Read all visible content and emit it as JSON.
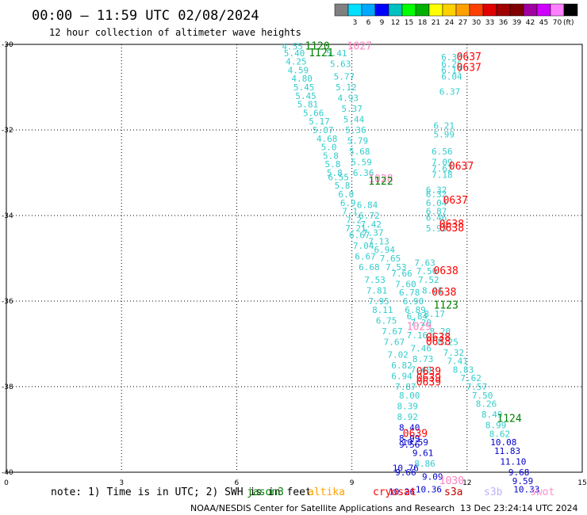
{
  "header": {
    "title": "00:00 – 11:59 UTC 02/08/2024",
    "subtitle": "12 hour collection of altimeter wave heights"
  },
  "legend": {
    "unit": "(ft)",
    "bins": [
      {
        "label": "",
        "color": "#808080"
      },
      {
        "label": "3",
        "color": "#00e0ff"
      },
      {
        "label": "6",
        "color": "#00a8ff"
      },
      {
        "label": "9",
        "color": "#0000ff"
      },
      {
        "label": "12",
        "color": "#00c0c0"
      },
      {
        "label": "15",
        "color": "#00ff00"
      },
      {
        "label": "18",
        "color": "#00b000"
      },
      {
        "label": "21",
        "color": "#ffff00"
      },
      {
        "label": "24",
        "color": "#ffd000"
      },
      {
        "label": "27",
        "color": "#ffa000"
      },
      {
        "label": "30",
        "color": "#ff4000"
      },
      {
        "label": "33",
        "color": "#e00000"
      },
      {
        "label": "36",
        "color": "#a00000"
      },
      {
        "label": "39",
        "color": "#800000"
      },
      {
        "label": "42",
        "color": "#a000a0"
      },
      {
        "label": "45",
        "color": "#d000ff"
      },
      {
        "label": "70",
        "color": "#ff80ff"
      },
      {
        "label": "",
        "color": "#000000"
      }
    ]
  },
  "footer": {
    "note": "note: 1) Time is in UTC; 2) SWH is in feet",
    "satellites": [
      {
        "name": "jason3",
        "color": "#008000"
      },
      {
        "name": "altika",
        "color": "#ffa000"
      },
      {
        "name": "cryosat",
        "color": "#ff0000"
      },
      {
        "name": "s3a",
        "color": "#c00000"
      },
      {
        "name": "s3b",
        "color": "#c0b0ff"
      },
      {
        "name": "swot",
        "color": "#ff90d0"
      }
    ],
    "credit": "NOAA/NESDIS Center for Satellite Applications and Research",
    "timestamp": "13 Dec 23:24:14 UTC 2024"
  },
  "chart_data": {
    "type": "scatter",
    "xlim": [
      0,
      15
    ],
    "ylim": [
      -40,
      -30
    ],
    "x_ticks": [
      "0",
      "3",
      "6",
      "9",
      "12",
      "15"
    ],
    "y_ticks": [
      "-30",
      "-32",
      "-34",
      "-36",
      "-38",
      "-40"
    ],
    "grid": true,
    "colors": {
      "cyan": "#33cccc",
      "blue": "#0000cc",
      "green": "#008000",
      "red": "#ff0000",
      "pink": "#ff80c0"
    },
    "values": [
      {
        "x": 7.45,
        "y": -30.05,
        "label": "4.55",
        "color": "cyan"
      },
      {
        "x": 7.5,
        "y": -30.2,
        "label": "5.40",
        "color": "cyan"
      },
      {
        "x": 7.55,
        "y": -30.4,
        "label": "4.25",
        "color": "cyan"
      },
      {
        "x": 7.6,
        "y": -30.6,
        "label": "4.59",
        "color": "cyan"
      },
      {
        "x": 7.7,
        "y": -30.8,
        "label": "4.80",
        "color": "cyan"
      },
      {
        "x": 7.75,
        "y": -31.0,
        "label": "5.45",
        "color": "cyan"
      },
      {
        "x": 7.8,
        "y": -31.2,
        "label": "5.45",
        "color": "cyan"
      },
      {
        "x": 7.85,
        "y": -31.4,
        "label": "5.81",
        "color": "cyan"
      },
      {
        "x": 8.0,
        "y": -31.6,
        "label": "5.66",
        "color": "cyan"
      },
      {
        "x": 8.15,
        "y": -31.8,
        "label": "5.17",
        "color": "cyan"
      },
      {
        "x": 8.25,
        "y": -32.0,
        "label": "5.07",
        "color": "cyan"
      },
      {
        "x": 8.35,
        "y": -32.2,
        "label": "4.68",
        "color": "cyan"
      },
      {
        "x": 8.4,
        "y": -32.4,
        "label": "5.0",
        "color": "cyan"
      },
      {
        "x": 8.45,
        "y": -32.6,
        "label": "5.8",
        "color": "cyan"
      },
      {
        "x": 8.5,
        "y": -32.8,
        "label": "5.8",
        "color": "cyan"
      },
      {
        "x": 8.55,
        "y": -33.0,
        "label": "5.8",
        "color": "cyan"
      },
      {
        "x": 8.65,
        "y": -33.1,
        "label": "6.55",
        "color": "cyan"
      },
      {
        "x": 8.75,
        "y": -33.3,
        "label": "5.8",
        "color": "cyan"
      },
      {
        "x": 8.85,
        "y": -33.5,
        "label": "6.0",
        "color": "cyan"
      },
      {
        "x": 8.9,
        "y": -33.7,
        "label": "6.9",
        "color": "cyan"
      },
      {
        "x": 8.95,
        "y": -33.9,
        "label": "7.1",
        "color": "cyan"
      },
      {
        "x": 9.05,
        "y": -34.1,
        "label": "7.2",
        "color": "cyan"
      },
      {
        "x": 9.1,
        "y": -34.3,
        "label": "7.21",
        "color": "cyan"
      },
      {
        "x": 9.2,
        "y": -34.45,
        "label": "6.67",
        "color": "cyan"
      },
      {
        "x": 9.3,
        "y": -34.7,
        "label": "7.04",
        "color": "cyan"
      },
      {
        "x": 9.35,
        "y": -34.95,
        "label": "6.67",
        "color": "cyan"
      },
      {
        "x": 9.45,
        "y": -35.2,
        "label": "6.68",
        "color": "cyan"
      },
      {
        "x": 9.6,
        "y": -35.5,
        "label": "7.53",
        "color": "cyan"
      },
      {
        "x": 9.65,
        "y": -35.75,
        "label": "7.81",
        "color": "cyan"
      },
      {
        "x": 9.7,
        "y": -36.0,
        "label": "7.95",
        "color": "cyan"
      },
      {
        "x": 9.8,
        "y": -36.2,
        "label": "8.11",
        "color": "cyan"
      },
      {
        "x": 9.9,
        "y": -36.45,
        "label": "6.75",
        "color": "cyan"
      },
      {
        "x": 10.05,
        "y": -36.7,
        "label": "7.67",
        "color": "cyan"
      },
      {
        "x": 10.1,
        "y": -36.95,
        "label": "7.67",
        "color": "cyan"
      },
      {
        "x": 10.2,
        "y": -37.25,
        "label": "7.02",
        "color": "cyan"
      },
      {
        "x": 10.3,
        "y": -37.5,
        "label": "6.82",
        "color": "cyan"
      },
      {
        "x": 10.3,
        "y": -37.75,
        "label": "6.94",
        "color": "cyan"
      },
      {
        "x": 10.4,
        "y": -38.0,
        "label": "7.87",
        "color": "cyan"
      },
      {
        "x": 10.5,
        "y": -38.2,
        "label": "8.00",
        "color": "cyan"
      },
      {
        "x": 10.45,
        "y": -38.45,
        "label": "8.39",
        "color": "cyan"
      },
      {
        "x": 10.45,
        "y": -38.7,
        "label": "8.92",
        "color": "cyan"
      },
      {
        "x": 10.5,
        "y": -38.95,
        "label": "8.40",
        "color": "blue"
      },
      {
        "x": 10.5,
        "y": -39.2,
        "label": "8.99",
        "color": "blue"
      },
      {
        "x": 10.5,
        "y": -39.35,
        "label": "9.56",
        "color": "blue"
      },
      {
        "x": 10.65,
        "y": -39.3,
        "label": "10.59",
        "color": "blue"
      },
      {
        "x": 10.85,
        "y": -39.55,
        "label": "9.61",
        "color": "blue"
      },
      {
        "x": 10.9,
        "y": -39.8,
        "label": "8.86",
        "color": "cyan"
      },
      {
        "x": 10.4,
        "y": -39.9,
        "label": "10.76",
        "color": "blue"
      },
      {
        "x": 10.4,
        "y": -40.0,
        "label": "9.66",
        "color": "blue"
      },
      {
        "x": 11.1,
        "y": -40.1,
        "label": "9.09",
        "color": "blue"
      },
      {
        "x": 11.0,
        "y": -40.4,
        "label": "10.36",
        "color": "blue"
      },
      {
        "x": 10.3,
        "y": -40.45,
        "label": "10.26",
        "color": "blue"
      },
      {
        "x": 8.6,
        "y": -30.2,
        "label": "5.41",
        "color": "cyan"
      },
      {
        "x": 8.7,
        "y": -30.45,
        "label": "5.63",
        "color": "cyan"
      },
      {
        "x": 8.8,
        "y": -30.75,
        "label": "5.77",
        "color": "cyan"
      },
      {
        "x": 8.85,
        "y": -31.0,
        "label": "5.12",
        "color": "cyan"
      },
      {
        "x": 8.9,
        "y": -31.25,
        "label": "4.93",
        "color": "cyan"
      },
      {
        "x": 9.0,
        "y": -31.5,
        "label": "5.37",
        "color": "cyan"
      },
      {
        "x": 9.05,
        "y": -31.75,
        "label": "5.44",
        "color": "cyan"
      },
      {
        "x": 9.1,
        "y": -32.0,
        "label": "5.36",
        "color": "cyan"
      },
      {
        "x": 9.15,
        "y": -32.25,
        "label": "5.79",
        "color": "cyan"
      },
      {
        "x": 9.2,
        "y": -32.5,
        "label": "5.68",
        "color": "cyan"
      },
      {
        "x": 9.25,
        "y": -32.75,
        "label": "5.59",
        "color": "cyan"
      },
      {
        "x": 9.3,
        "y": -33.0,
        "label": "6.36",
        "color": "cyan"
      },
      {
        "x": 9.4,
        "y": -33.75,
        "label": "6.84",
        "color": "cyan"
      },
      {
        "x": 9.45,
        "y": -34.0,
        "label": "6.72",
        "color": "cyan"
      },
      {
        "x": 9.5,
        "y": -34.2,
        "label": "7.42",
        "color": "cyan"
      },
      {
        "x": 9.55,
        "y": -34.4,
        "label": "7.37",
        "color": "cyan"
      },
      {
        "x": 9.7,
        "y": -34.6,
        "label": "7.13",
        "color": "cyan"
      },
      {
        "x": 9.85,
        "y": -34.8,
        "label": "6.94",
        "color": "cyan"
      },
      {
        "x": 10.0,
        "y": -35.0,
        "label": "7.65",
        "color": "cyan"
      },
      {
        "x": 10.15,
        "y": -35.2,
        "label": "7.53",
        "color": "cyan"
      },
      {
        "x": 10.3,
        "y": -35.35,
        "label": "7.66",
        "color": "cyan"
      },
      {
        "x": 10.4,
        "y": -35.6,
        "label": "7.60",
        "color": "cyan"
      },
      {
        "x": 10.5,
        "y": -35.8,
        "label": "6.78",
        "color": "cyan"
      },
      {
        "x": 10.6,
        "y": -36.0,
        "label": "6.90",
        "color": "cyan"
      },
      {
        "x": 10.65,
        "y": -36.2,
        "label": "6.89",
        "color": "cyan"
      },
      {
        "x": 10.7,
        "y": -36.35,
        "label": "6.84",
        "color": "cyan"
      },
      {
        "x": 10.8,
        "y": -36.5,
        "label": "7.20",
        "color": "cyan"
      },
      {
        "x": 10.7,
        "y": -36.8,
        "label": "7.16",
        "color": "cyan"
      },
      {
        "x": 10.8,
        "y": -37.1,
        "label": "7.46",
        "color": "cyan"
      },
      {
        "x": 10.85,
        "y": -37.35,
        "label": "8.73",
        "color": "cyan"
      },
      {
        "x": 10.8,
        "y": -37.6,
        "label": "7.40",
        "color": "cyan"
      },
      {
        "x": 10.9,
        "y": -35.1,
        "label": "7.63",
        "color": "cyan"
      },
      {
        "x": 10.95,
        "y": -35.3,
        "label": "7.56",
        "color": "cyan"
      },
      {
        "x": 11.0,
        "y": -35.5,
        "label": "7.52",
        "color": "cyan"
      },
      {
        "x": 11.1,
        "y": -35.75,
        "label": "8.01",
        "color": "cyan"
      },
      {
        "x": 11.15,
        "y": -36.3,
        "label": "8.17",
        "color": "cyan"
      },
      {
        "x": 11.3,
        "y": -36.7,
        "label": "8.20",
        "color": "cyan"
      },
      {
        "x": 11.5,
        "y": -36.95,
        "label": "8.25",
        "color": "cyan"
      },
      {
        "x": 11.65,
        "y": -37.2,
        "label": "7.32",
        "color": "cyan"
      },
      {
        "x": 11.75,
        "y": -37.4,
        "label": "7.41",
        "color": "cyan"
      },
      {
        "x": 11.9,
        "y": -37.6,
        "label": "8.83",
        "color": "cyan"
      },
      {
        "x": 12.1,
        "y": -37.8,
        "label": "7.62",
        "color": "cyan"
      },
      {
        "x": 12.25,
        "y": -38.0,
        "label": "7.57",
        "color": "cyan"
      },
      {
        "x": 12.4,
        "y": -38.2,
        "label": "7.50",
        "color": "cyan"
      },
      {
        "x": 12.5,
        "y": -38.4,
        "label": "8.26",
        "color": "cyan"
      },
      {
        "x": 12.65,
        "y": -38.65,
        "label": "8.49",
        "color": "cyan"
      },
      {
        "x": 12.75,
        "y": -38.9,
        "label": "8.99",
        "color": "cyan"
      },
      {
        "x": 12.85,
        "y": -39.1,
        "label": "8.62",
        "color": "cyan"
      },
      {
        "x": 12.95,
        "y": -39.3,
        "label": "10.08",
        "color": "blue"
      },
      {
        "x": 13.05,
        "y": -39.5,
        "label": "11.83",
        "color": "blue"
      },
      {
        "x": 13.2,
        "y": -39.75,
        "label": "11.10",
        "color": "blue"
      },
      {
        "x": 13.35,
        "y": -40.0,
        "label": "9.68",
        "color": "blue"
      },
      {
        "x": 13.45,
        "y": -40.2,
        "label": "9.59",
        "color": "blue"
      },
      {
        "x": 13.55,
        "y": -40.4,
        "label": "10.33",
        "color": "blue"
      },
      {
        "x": 11.6,
        "y": -30.3,
        "label": "6.30",
        "color": "cyan"
      },
      {
        "x": 11.6,
        "y": -30.45,
        "label": "6.26",
        "color": "cyan"
      },
      {
        "x": 11.6,
        "y": -30.6,
        "label": "6.17",
        "color": "cyan"
      },
      {
        "x": 11.6,
        "y": -30.75,
        "label": "6.04",
        "color": "cyan"
      },
      {
        "x": 11.55,
        "y": -31.1,
        "label": "6.37",
        "color": "cyan"
      },
      {
        "x": 11.4,
        "y": -31.9,
        "label": "6.21",
        "color": "cyan"
      },
      {
        "x": 11.4,
        "y": -32.1,
        "label": "5.99",
        "color": "cyan"
      },
      {
        "x": 11.35,
        "y": -32.5,
        "label": "6.56",
        "color": "cyan"
      },
      {
        "x": 11.35,
        "y": -32.75,
        "label": "7.09",
        "color": "cyan"
      },
      {
        "x": 11.35,
        "y": -32.9,
        "label": "7.62",
        "color": "cyan"
      },
      {
        "x": 11.35,
        "y": -33.05,
        "label": "7.18",
        "color": "cyan"
      },
      {
        "x": 11.2,
        "y": -33.4,
        "label": "6.32",
        "color": "cyan"
      },
      {
        "x": 11.2,
        "y": -33.5,
        "label": "6.32",
        "color": "cyan"
      },
      {
        "x": 11.2,
        "y": -33.7,
        "label": "6.04",
        "color": "cyan"
      },
      {
        "x": 11.2,
        "y": -33.9,
        "label": "6.87",
        "color": "cyan"
      },
      {
        "x": 11.2,
        "y": -34.05,
        "label": "6.46",
        "color": "cyan"
      },
      {
        "x": 11.2,
        "y": -34.3,
        "label": "5.93",
        "color": "cyan"
      },
      {
        "x": 8.1,
        "y": -30.05,
        "label": "1120",
        "color": "green"
      },
      {
        "x": 8.2,
        "y": -30.2,
        "label": "1121",
        "color": "green"
      },
      {
        "x": 9.2,
        "y": -30.05,
        "label": "1027",
        "color": "pink"
      },
      {
        "x": 9.75,
        "y": -33.15,
        "label": "1028",
        "color": "pink"
      },
      {
        "x": 9.75,
        "y": -33.2,
        "label": "1122",
        "color": "green"
      },
      {
        "x": 12.05,
        "y": -30.3,
        "label": "0637",
        "color": "red"
      },
      {
        "x": 12.05,
        "y": -30.55,
        "label": "0637",
        "color": "red"
      },
      {
        "x": 11.85,
        "y": -32.85,
        "label": "0637",
        "color": "red"
      },
      {
        "x": 11.7,
        "y": -33.65,
        "label": "0637",
        "color": "red"
      },
      {
        "x": 11.6,
        "y": -34.2,
        "label": "0638",
        "color": "red"
      },
      {
        "x": 11.6,
        "y": -34.3,
        "label": "0638",
        "color": "red"
      },
      {
        "x": 11.45,
        "y": -35.3,
        "label": "0638",
        "color": "red"
      },
      {
        "x": 11.4,
        "y": -35.8,
        "label": "0638",
        "color": "red"
      },
      {
        "x": 11.45,
        "y": -36.1,
        "label": "1123",
        "color": "green"
      },
      {
        "x": 10.75,
        "y": -36.6,
        "label": "1029",
        "color": "pink"
      },
      {
        "x": 11.25,
        "y": -36.85,
        "label": "0638",
        "color": "red"
      },
      {
        "x": 11.25,
        "y": -36.95,
        "label": "0638",
        "color": "red"
      },
      {
        "x": 11.0,
        "y": -37.65,
        "label": "0639",
        "color": "red"
      },
      {
        "x": 11.0,
        "y": -37.8,
        "label": "0639",
        "color": "red"
      },
      {
        "x": 11.0,
        "y": -37.9,
        "label": "0639",
        "color": "red"
      },
      {
        "x": 13.1,
        "y": -38.75,
        "label": "1124",
        "color": "green"
      },
      {
        "x": 10.65,
        "y": -39.1,
        "label": "0639",
        "color": "red"
      },
      {
        "x": 11.6,
        "y": -40.2,
        "label": "1030",
        "color": "pink"
      }
    ]
  }
}
